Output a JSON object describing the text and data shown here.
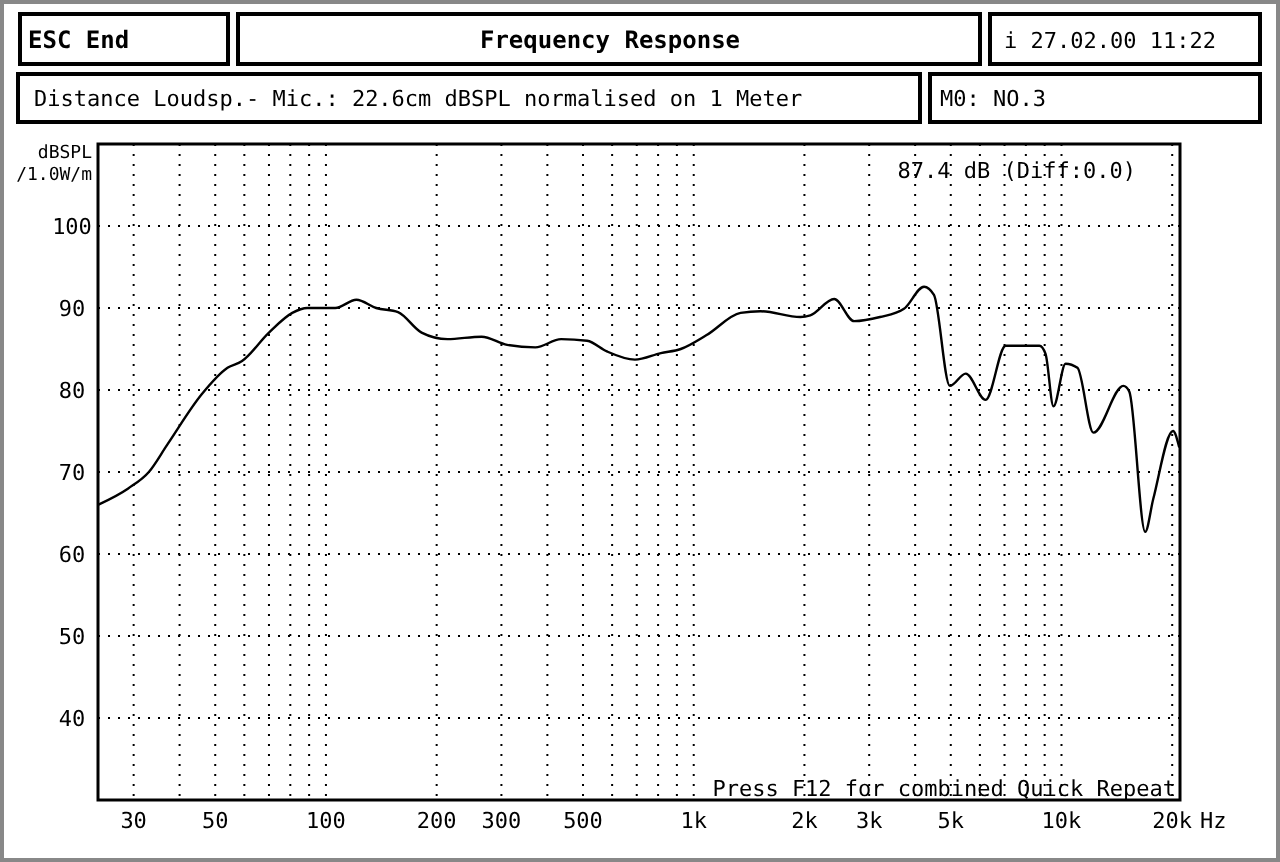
{
  "chart_data": {
    "type": "line",
    "title": "Frequency Response",
    "subtitle": "Distance Loudsp.- Mic.: 22.6cm dBSPL normalised on 1 Meter",
    "ylabel": "dBSPL\n/1.0W/m",
    "annotations": [
      "ESC End",
      "i 27.02.00 11:22",
      "M0: NO.3",
      "87.4 dB (Diff:0.0)",
      "Press F12 for combined Quick Repeat"
    ],
    "xlabel": "Hz",
    "log": "x",
    "grid": true,
    "line_style": "solid",
    "xlim": [
      24,
      21000
    ],
    "ylim": [
      30,
      110
    ],
    "xticks": [
      {
        "value": 30,
        "label": "30"
      },
      {
        "value": 40,
        "label": null
      },
      {
        "value": 50,
        "label": "50"
      },
      {
        "value": 60,
        "label": null
      },
      {
        "value": 70,
        "label": null
      },
      {
        "value": 80,
        "label": null
      },
      {
        "value": 90,
        "label": null
      },
      {
        "value": 100,
        "label": "100"
      },
      {
        "value": 200,
        "label": "200"
      },
      {
        "value": 300,
        "label": "300"
      },
      {
        "value": 400,
        "label": null
      },
      {
        "value": 500,
        "label": "500"
      },
      {
        "value": 600,
        "label": null
      },
      {
        "value": 700,
        "label": null
      },
      {
        "value": 800,
        "label": null
      },
      {
        "value": 900,
        "label": null
      },
      {
        "value": 1000,
        "label": "1k"
      },
      {
        "value": 2000,
        "label": "2k"
      },
      {
        "value": 3000,
        "label": "3k"
      },
      {
        "value": 4000,
        "label": null
      },
      {
        "value": 5000,
        "label": "5k"
      },
      {
        "value": 6000,
        "label": null
      },
      {
        "value": 7000,
        "label": null
      },
      {
        "value": 8000,
        "label": null
      },
      {
        "value": 9000,
        "label": null
      },
      {
        "value": 10000,
        "label": "10k"
      },
      {
        "value": 20000,
        "label": "20k"
      }
    ],
    "yticks": [
      40,
      50,
      60,
      70,
      80,
      90,
      100
    ],
    "x": [
      24,
      29,
      33,
      37,
      46,
      54,
      59,
      70,
      81,
      89,
      106,
      121,
      137,
      157,
      182,
      214,
      265,
      311,
      371,
      436,
      513,
      581,
      692,
      814,
      922,
      1084,
      1341,
      1520,
      1950,
      2075,
      2410,
      2730,
      3210,
      3730,
      4230,
      4500,
      4970,
      5490,
      6220,
      7050,
      8710,
      9050,
      9510,
      10260,
      11050,
      12210,
      14730,
      15290,
      16890,
      17760,
      20100,
      20900
    ],
    "series": [
      {
        "color": "#000000",
        "values": [
          66,
          68,
          70,
          73.3,
          79.5,
          82.7,
          83.5,
          87,
          89.4,
          90,
          90,
          91,
          90,
          89.5,
          87,
          86.2,
          86.5,
          85.5,
          85.2,
          86.2,
          86,
          84.7,
          83.7,
          84.5,
          85,
          86.7,
          89.4,
          89.6,
          88.9,
          89.1,
          91.1,
          88.4,
          88.9,
          89.9,
          92.6,
          91.6,
          80.5,
          82,
          78.8,
          85.4,
          85.4,
          84.4,
          78,
          83.2,
          82.7,
          74.8,
          80.5,
          79.8,
          62.7,
          66.7,
          75,
          73
        ]
      }
    ]
  }
}
